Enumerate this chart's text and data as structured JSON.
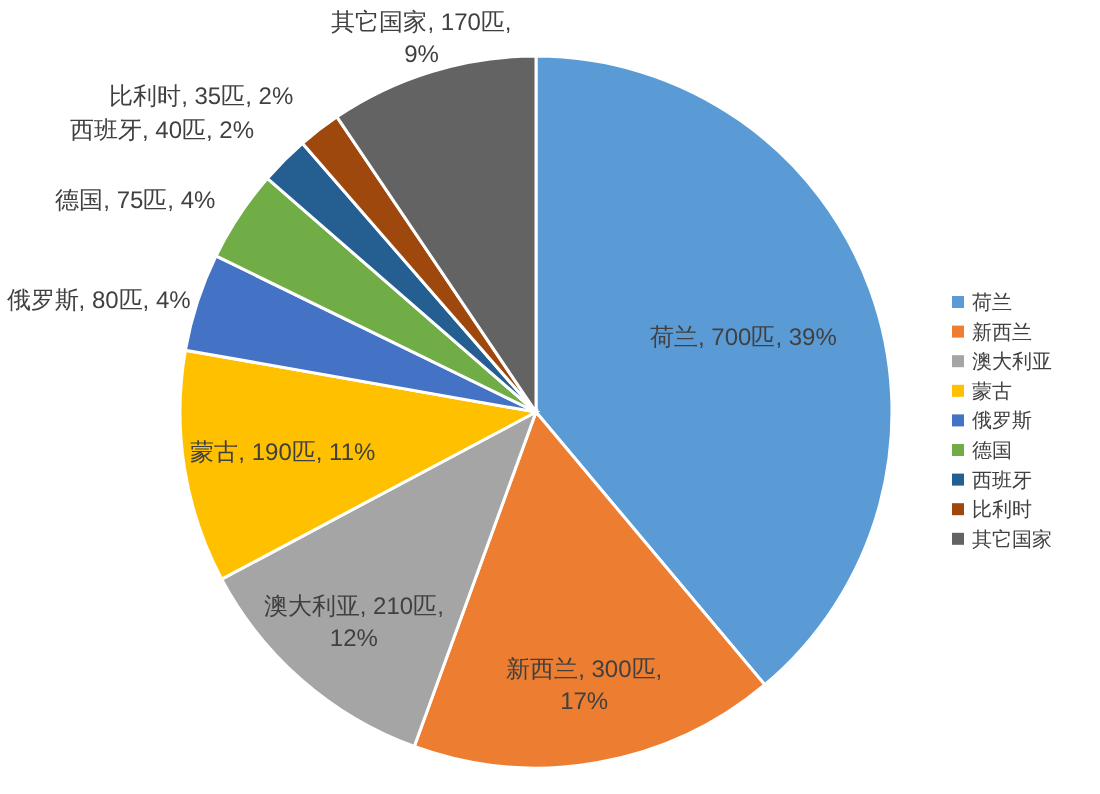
{
  "chart_data": {
    "type": "pie",
    "categories": [
      "荷兰",
      "新西兰",
      "澳大利亚",
      "蒙古",
      "俄罗斯",
      "德国",
      "西班牙",
      "比利时",
      "其它国家"
    ],
    "values": [
      700,
      300,
      210,
      190,
      80,
      75,
      40,
      35,
      170
    ],
    "colors": [
      "#5b9bd5",
      "#ed7d31",
      "#a5a5a5",
      "#ffc000",
      "#4472c4",
      "#70ad47",
      "#255e91",
      "#9e480e",
      "#636363"
    ],
    "value_labels": [
      "荷兰, 700匹, 39%",
      "新西兰, 300匹, 17%",
      "澳大利亚, 210匹, 12%",
      "蒙古, 190匹, 11%",
      "俄罗斯, 80匹, 4%",
      "德国, 75匹, 4%",
      "西班牙, 40匹, 2%",
      "比利时, 35匹, 2%",
      "其它国家, 170匹, 9%"
    ],
    "legend": "right"
  }
}
